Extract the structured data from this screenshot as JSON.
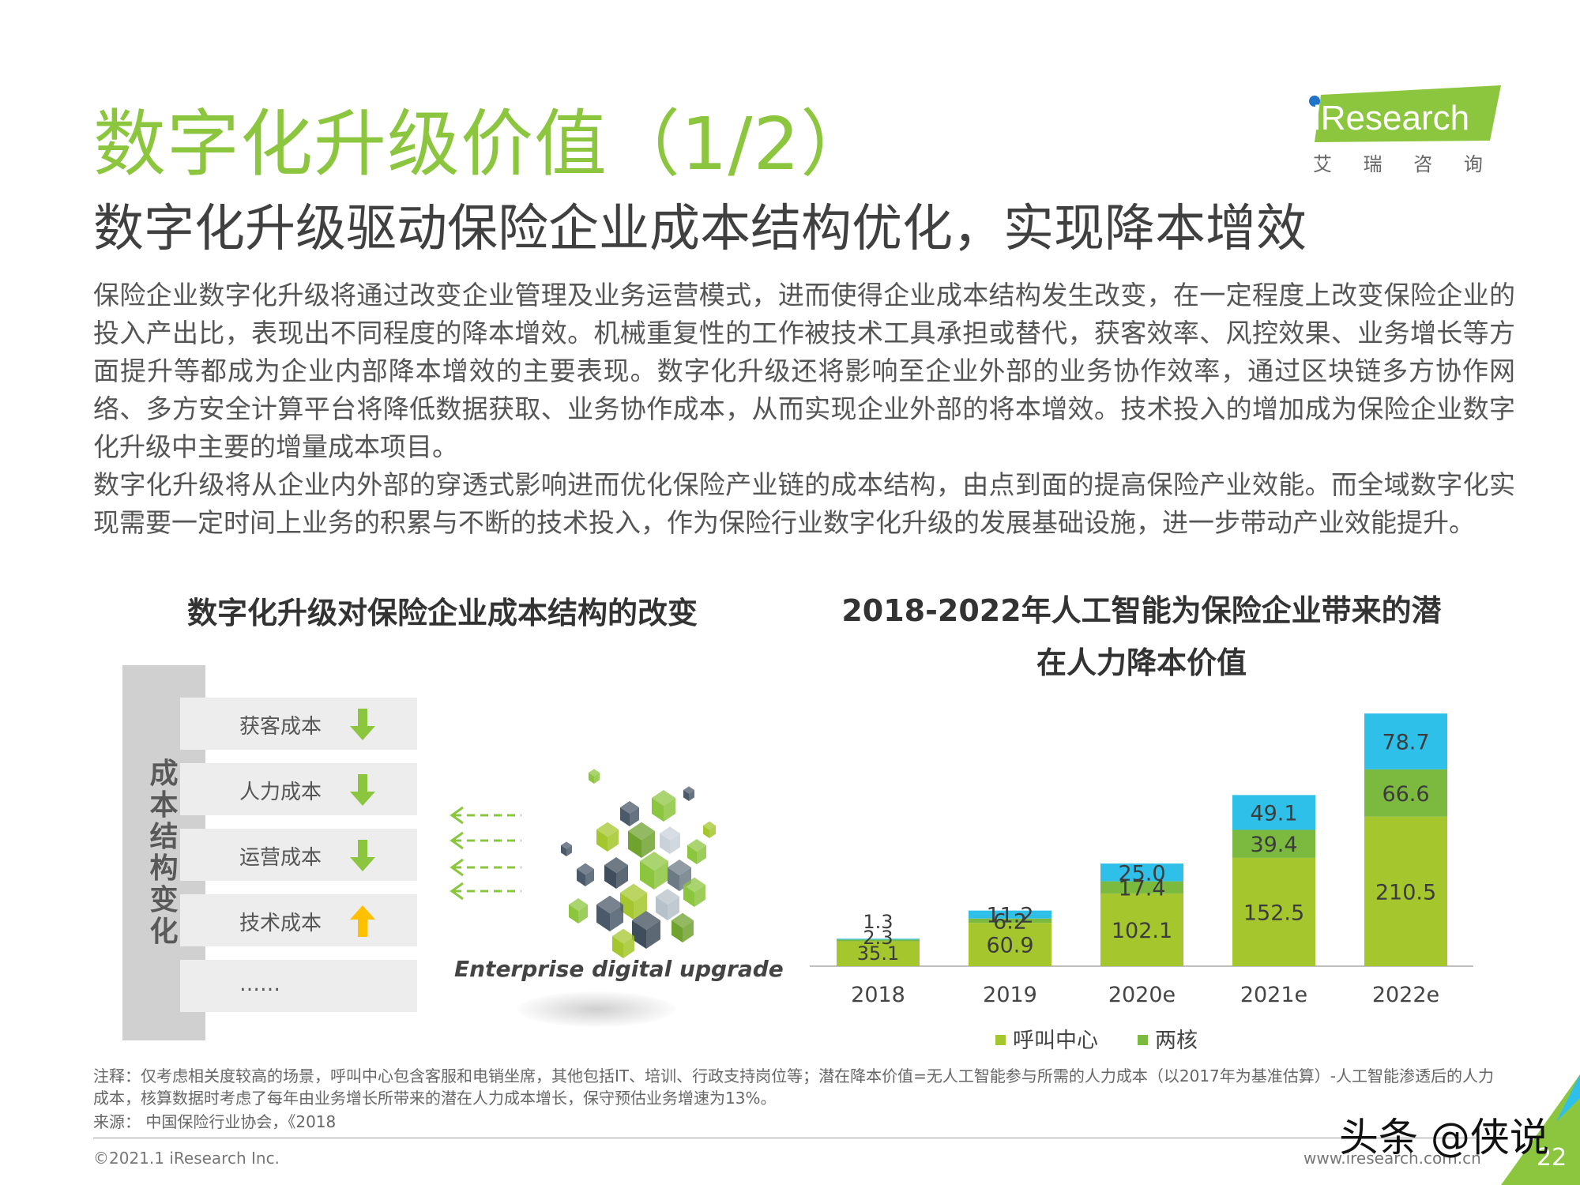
{
  "header": {
    "title": "数字化升级价值（1/2）",
    "subtitle": "数字化升级驱动保险企业成本结构优化，实现降本增效",
    "logo": {
      "brand": "iResearch",
      "cn": "艾 瑞 咨 询",
      "brand_color": "#8cc63f",
      "accent_color": "#1f74c8"
    }
  },
  "body": {
    "paragraph1": "保险企业数字化升级将通过改变企业管理及业务运营模式，进而使得企业成本结构发生改变，在一定程度上改变保险企业的投入产出比，表现出不同程度的降本增效。机械重复性的工作被技术工具承担或替代，获客效率、风控效果、业务增长等方面提升等都成为企业内部降本增效的主要表现。数字化升级还将影响至企业外部的业务协作效率，通过区块链多方协作网络、多方安全计算平台将降低数据获取、业务协作成本，从而实现企业外部的将本增效。技术投入的增加成为保险企业数字化升级中主要的增量成本项目。",
    "paragraph2": "数字化升级将从企业内外部的穿透式影响进而优化保险产业链的成本结构，由点到面的提高保险产业效能。而全域数字化实现需要一定时间上业务的积累与不断的技术投入，作为保险行业数字化升级的发展基础设施，进一步带动产业效能提升。"
  },
  "left_figure": {
    "title": "数字化升级对保险企业成本结构的改变",
    "bar_label": "成本结构变化",
    "items": [
      {
        "label": "获客成本",
        "direction": "down",
        "color": "#8cc63f"
      },
      {
        "label": "人力成本",
        "direction": "down",
        "color": "#8cc63f"
      },
      {
        "label": "运营成本",
        "direction": "down",
        "color": "#8cc63f"
      },
      {
        "label": "技术成本",
        "direction": "up",
        "color": "#ffc000"
      },
      {
        "label": "……",
        "direction": "none",
        "color": ""
      }
    ],
    "caption": "Enterprise digital upgrade"
  },
  "chart_data": {
    "type": "bar",
    "stacked": true,
    "title": "2018-2022年人工智能为保险企业带来的潜在人力降本价值",
    "categories": [
      "2018",
      "2019",
      "2020e",
      "2021e",
      "2022e"
    ],
    "series": [
      {
        "name": "呼叫中心",
        "color": "#a5c72d",
        "values": [
          35.1,
          60.9,
          102.1,
          152.5,
          210.5
        ]
      },
      {
        "name": "两核",
        "color": "#7cba3f",
        "values": [
          2.3,
          6.2,
          17.4,
          39.4,
          66.6
        ]
      },
      {
        "name": "",
        "color": "#2fc0ea",
        "values": [
          1.3,
          11.2,
          25.0,
          49.1,
          78.7
        ]
      }
    ],
    "labels": [
      [
        "35.1",
        "2.3",
        "1.3"
      ],
      [
        "60.9",
        "6.2",
        "11.2"
      ],
      [
        "102.1",
        "17.4",
        "25.0"
      ],
      [
        "152.5",
        "39.4",
        "49.1"
      ],
      [
        "210.5",
        "66.6",
        "78.7"
      ]
    ],
    "ylim": [
      0,
      356
    ],
    "legend_position": "bottom"
  },
  "footer": {
    "note": "注释：仅考虑相关度较高的场景，呼叫中心包含客服和电销坐席，其他包括IT、培训、行政支持岗位等；潜在降本价值=无人工智能参与所需的人力成本（以2017年为基准估算）-人工智能渗透后的人力成本，核算数据时考虑了每年由业务增长所带来的潜在人力成本增长，保守预估业务增速为13%。",
    "source": "来源： 中国保险行业协会，《2018",
    "copyright": "©2021.1 iResearch Inc.",
    "url": "www.iresearch.com.cn",
    "page": "22",
    "watermark": "头条 @侠说"
  }
}
